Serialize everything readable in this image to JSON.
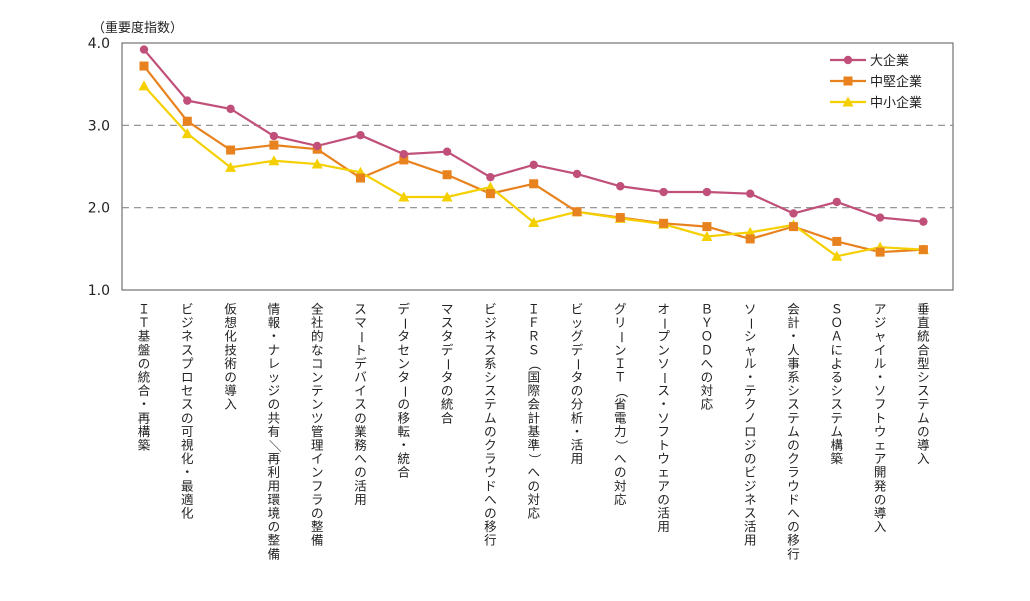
{
  "chart_data": {
    "type": "line",
    "ylabel": "（重要度指数）",
    "ylim": [
      1.0,
      4.0
    ],
    "yticks": [
      "1.0",
      "2.0",
      "3.0",
      "4.0"
    ],
    "grid": "dashed horizontal at 2.0 and 3.0",
    "legend_position": "top-right",
    "categories": [
      "ＩＴ基盤の統合・再構築",
      "ビジネスプロセスの可視化・最適化",
      "仮想化技術の導入",
      "情報・ナレッジの共有／再利用環境の整備",
      "全社的なコンテンツ管理インフラの整備",
      "スマートデバイスの業務への活用",
      "データセンターの移転・統合",
      "マスタデータの統合",
      "ビジネス系システムのクラウドへの移行",
      "ＩＦＲＳ（国際会計基準）への対応",
      "ビッグデータの分析・活用",
      "グリーンＩＴ（省電力）への対応",
      "オープンソース・ソフトウェアの活用",
      "ＢＹＯＤへの対応",
      "ソーシャル・テクノロジのビジネス活用",
      "会計・人事系システムのクラウドへの移行",
      "ＳＯＡによるシステム構築",
      "アジャイル・ソフトウェア開発の導入",
      "垂直統合型システムの導入"
    ],
    "series": [
      {
        "name": "大企業",
        "color": "#c0507a",
        "marker": "circle",
        "values": [
          3.92,
          3.3,
          3.2,
          2.87,
          2.75,
          2.88,
          2.65,
          2.68,
          2.37,
          2.52,
          2.41,
          2.26,
          2.19,
          2.19,
          2.17,
          1.93,
          2.07,
          1.88,
          1.83
        ]
      },
      {
        "name": "中堅企業",
        "color": "#e8821e",
        "marker": "square",
        "values": [
          3.72,
          3.05,
          2.7,
          2.76,
          2.71,
          2.36,
          2.58,
          2.4,
          2.17,
          2.29,
          1.95,
          1.88,
          1.81,
          1.77,
          1.62,
          1.77,
          1.59,
          1.46,
          1.49
        ]
      },
      {
        "name": "中小企業",
        "color": "#f5d000",
        "marker": "triangle",
        "values": [
          3.48,
          2.9,
          2.49,
          2.57,
          2.53,
          2.43,
          2.13,
          2.13,
          2.25,
          1.82,
          1.95,
          1.87,
          1.8,
          1.65,
          1.7,
          1.79,
          1.41,
          1.52,
          1.49
        ]
      }
    ]
  }
}
